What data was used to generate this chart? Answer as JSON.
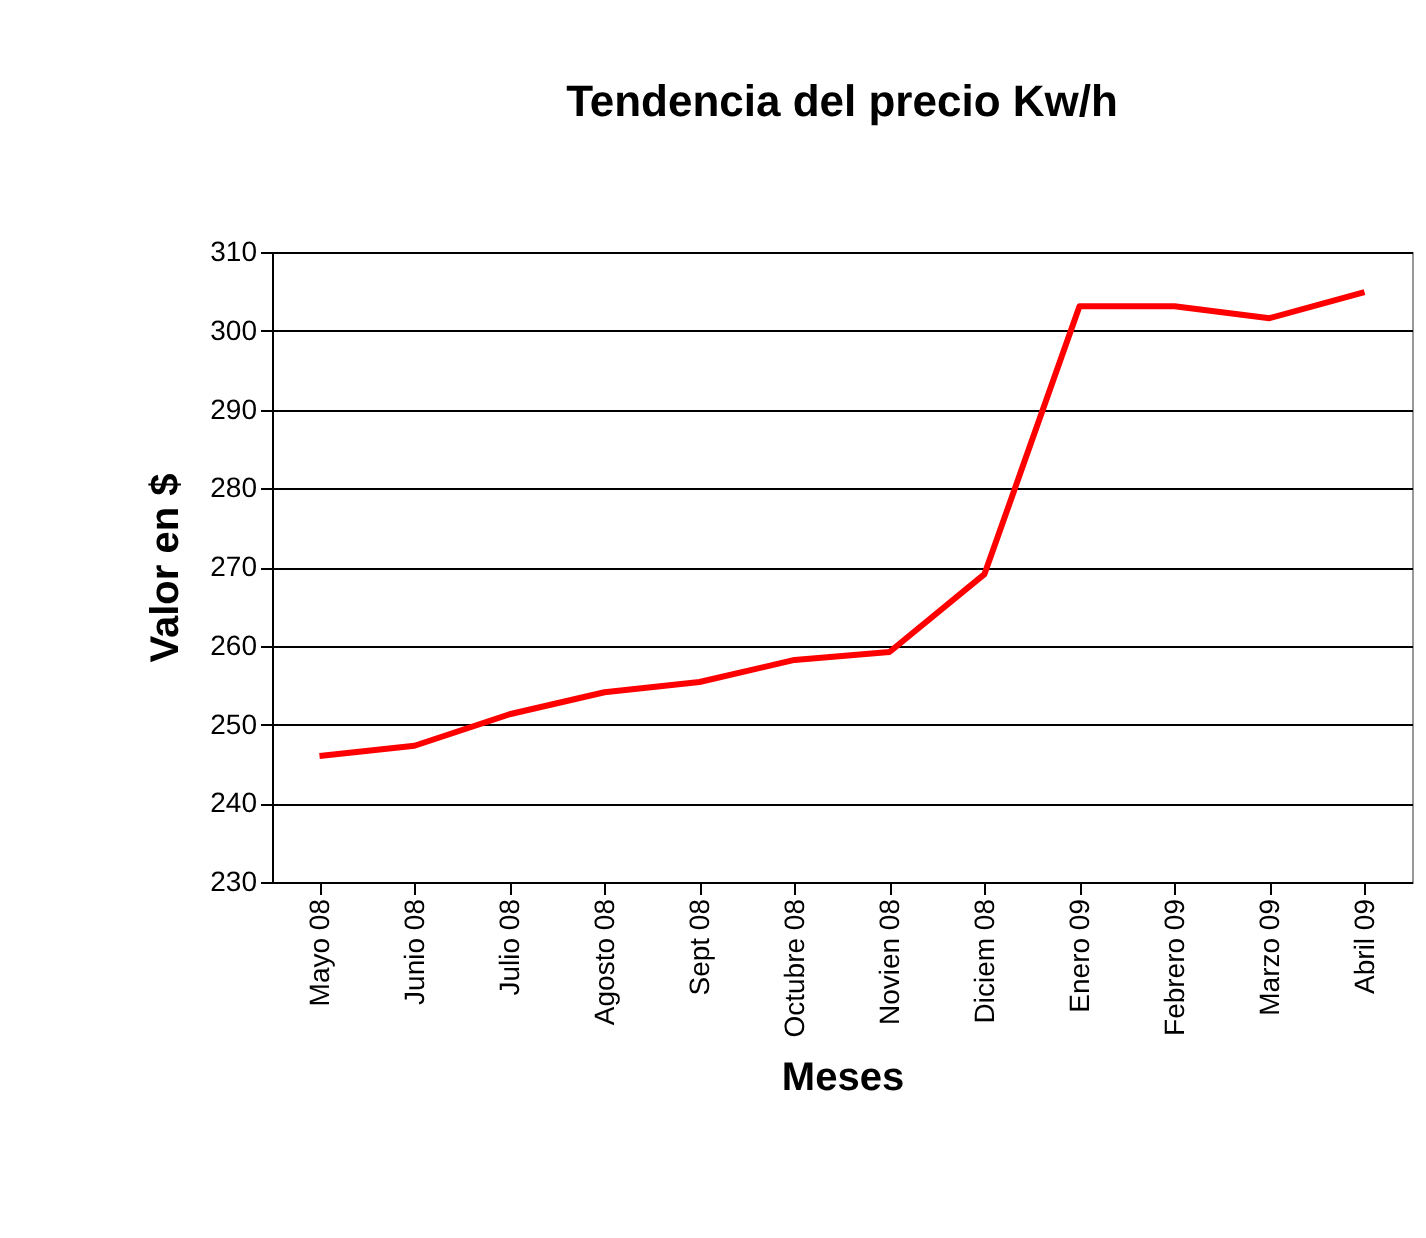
{
  "chart_data": {
    "type": "line",
    "title": "Tendencia del precio Kw/h",
    "xlabel": "Meses",
    "ylabel": "Valor en $",
    "categories": [
      "Mayo 08",
      "Junio 08",
      "Julio 08",
      "Agosto 08",
      "Sept 08",
      "Octubre 08",
      "Novien 08",
      "Diciem 08",
      "Enero 09",
      "Febrero 09",
      "Marzo 09",
      "Abril 09"
    ],
    "series": [
      {
        "color": "#ff0000",
        "values": [
          246,
          247.3,
          251.3,
          254.1,
          255.4,
          258.2,
          259.2,
          269.1,
          303.1,
          303.1,
          301.6,
          304.9
        ]
      }
    ],
    "ylim": [
      230,
      310
    ],
    "yticks": [
      230,
      240,
      250,
      260,
      270,
      280,
      290,
      300,
      310
    ],
    "grid": "y",
    "marker": "none",
    "line_style": "solid"
  }
}
